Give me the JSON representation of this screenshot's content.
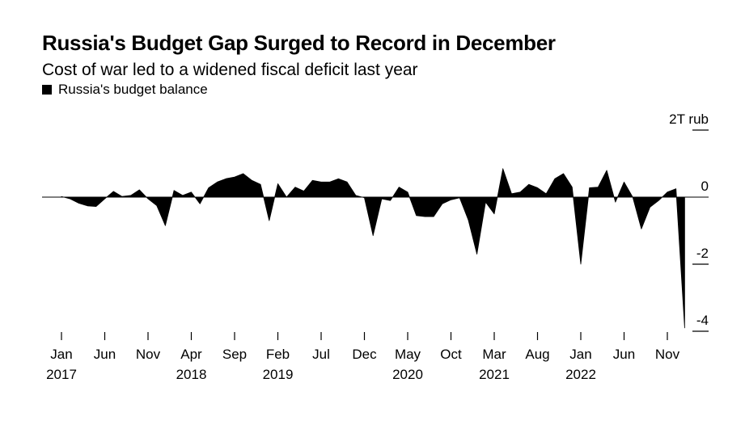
{
  "header": {
    "title": "Russia's Budget Gap Surged to Record in December",
    "subtitle": "Cost of war led to a widened fiscal deficit last year"
  },
  "legend": {
    "label": "Russia's budget balance"
  },
  "colors": {
    "series": "#000000",
    "background": "#ffffff"
  },
  "chart_data": {
    "type": "area",
    "title": "Russia's Budget Gap Surged to Record in December",
    "subtitle": "Cost of war led to a widened fiscal deficit last year",
    "series_name": "Russia's budget balance",
    "unit": "T rub",
    "ylim": [
      -4,
      2
    ],
    "y_ticks": [
      {
        "value": 2,
        "label": "2T rub"
      },
      {
        "value": 0,
        "label": "0"
      },
      {
        "value": -2,
        "label": "-2"
      },
      {
        "value": -4,
        "label": "-4"
      }
    ],
    "x_ticks": [
      {
        "month": "2017-01",
        "label": "Jan",
        "year": "2017"
      },
      {
        "month": "2017-06",
        "label": "Jun",
        "year": ""
      },
      {
        "month": "2017-11",
        "label": "Nov",
        "year": ""
      },
      {
        "month": "2018-04",
        "label": "Apr",
        "year": "2018"
      },
      {
        "month": "2018-09",
        "label": "Sep",
        "year": ""
      },
      {
        "month": "2019-02",
        "label": "Feb",
        "year": "2019"
      },
      {
        "month": "2019-07",
        "label": "Jul",
        "year": ""
      },
      {
        "month": "2019-12",
        "label": "Dec",
        "year": ""
      },
      {
        "month": "2020-05",
        "label": "May",
        "year": "2020"
      },
      {
        "month": "2020-10",
        "label": "Oct",
        "year": ""
      },
      {
        "month": "2021-03",
        "label": "Mar",
        "year": "2021"
      },
      {
        "month": "2021-08",
        "label": "Aug",
        "year": ""
      },
      {
        "month": "2022-01",
        "label": "Jan",
        "year": "2022"
      },
      {
        "month": "2022-06",
        "label": "Jun",
        "year": ""
      },
      {
        "month": "2022-11",
        "label": "Nov",
        "year": ""
      }
    ],
    "x_start": "2017-01",
    "values": [
      0.02,
      -0.05,
      -0.18,
      -0.26,
      -0.28,
      -0.05,
      0.17,
      0.02,
      0.05,
      0.22,
      -0.05,
      -0.25,
      -0.85,
      0.2,
      0.05,
      0.15,
      -0.2,
      0.28,
      0.45,
      0.55,
      0.6,
      0.7,
      0.5,
      0.38,
      -0.7,
      0.4,
      0.0,
      0.3,
      0.18,
      0.5,
      0.45,
      0.45,
      0.55,
      0.45,
      0.05,
      -0.02,
      -1.15,
      -0.05,
      -0.1,
      0.3,
      0.15,
      -0.55,
      -0.58,
      -0.58,
      -0.2,
      -0.08,
      -0.02,
      -0.68,
      -1.7,
      -0.15,
      -0.5,
      0.85,
      0.1,
      0.15,
      0.38,
      0.28,
      0.1,
      0.55,
      0.7,
      0.3,
      -2.0,
      0.28,
      0.3,
      0.8,
      -0.15,
      0.45,
      0.0,
      -0.95,
      -0.3,
      -0.1,
      0.15,
      0.25,
      -3.9
    ]
  }
}
